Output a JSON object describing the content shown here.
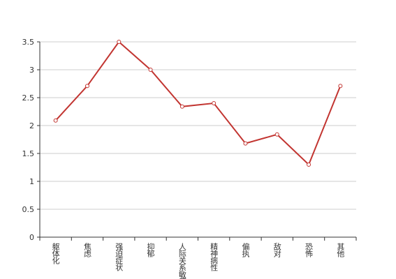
{
  "chart_data": {
    "type": "line",
    "categories": [
      "躯体化",
      "焦虑",
      "强迫症状",
      "抑郁",
      "人际关系敏感",
      "精神病性",
      "偏执",
      "敌对",
      "恐怖",
      "其他"
    ],
    "series": [
      {
        "color": "#c23531",
        "values": [
          2.09,
          2.71,
          3.5,
          3.0,
          2.34,
          2.4,
          1.68,
          1.84,
          1.3,
          2.71
        ]
      }
    ],
    "ylim": [
      0,
      3.5
    ],
    "yticks": [
      0,
      {
        "value": 0.5,
        "label": "0.5"
      },
      1,
      {
        "value": 1.5,
        "label": "1.5"
      },
      2,
      {
        "value": 2.5,
        "label": "2.5"
      },
      3,
      {
        "value": 3.5,
        "label": "3.5"
      }
    ],
    "grid": true
  }
}
